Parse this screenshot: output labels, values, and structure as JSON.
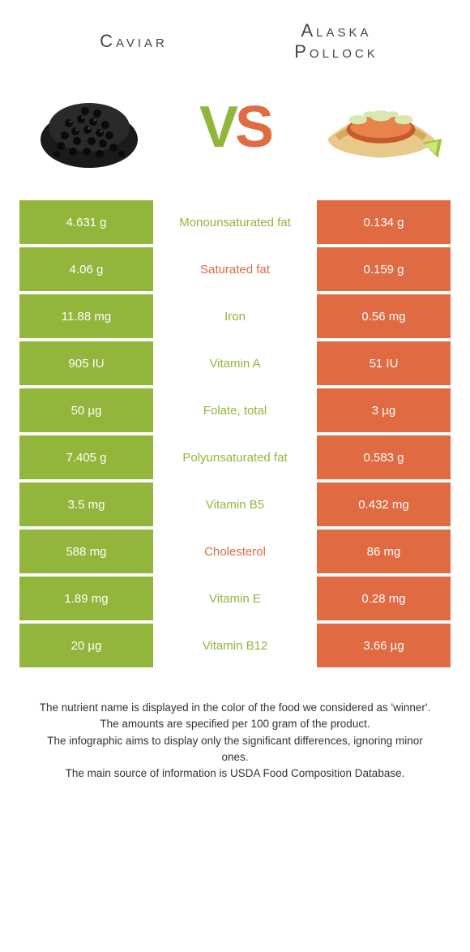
{
  "titles": {
    "left": "Caviar",
    "right_line1": "Alaska",
    "right_line2": "Pollock"
  },
  "colors": {
    "left": "#92b53b",
    "right": "#e06a42",
    "mid_bg": "#ffffff"
  },
  "vs": {
    "v": "V",
    "s": "S"
  },
  "rows": [
    {
      "left": "4.631 g",
      "mid": "Monounsaturated fat",
      "right": "0.134 g",
      "mid_color": "left"
    },
    {
      "left": "4.06 g",
      "mid": "Saturated fat",
      "right": "0.159 g",
      "mid_color": "right"
    },
    {
      "left": "11.88 mg",
      "mid": "Iron",
      "right": "0.56 mg",
      "mid_color": "left"
    },
    {
      "left": "905 IU",
      "mid": "Vitamin A",
      "right": "51 IU",
      "mid_color": "left"
    },
    {
      "left": "50 µg",
      "mid": "Folate, total",
      "right": "3 µg",
      "mid_color": "left"
    },
    {
      "left": "7.405 g",
      "mid": "Polyunsaturated fat",
      "right": "0.583 g",
      "mid_color": "left"
    },
    {
      "left": "3.5 mg",
      "mid": "Vitamin B5",
      "right": "0.432 mg",
      "mid_color": "left"
    },
    {
      "left": "588 mg",
      "mid": "Cholesterol",
      "right": "86 mg",
      "mid_color": "right"
    },
    {
      "left": "1.89 mg",
      "mid": "Vitamin E",
      "right": "0.28 mg",
      "mid_color": "left"
    },
    {
      "left": "20 µg",
      "mid": "Vitamin B12",
      "right": "3.66 µg",
      "mid_color": "left"
    }
  ],
  "footer": {
    "line1": "The nutrient name is displayed in the color of the food we considered as 'winner'.",
    "line2": "The amounts are specified per 100 gram of the product.",
    "line3": "The infographic aims to display only the significant differences, ignoring minor ones.",
    "line4": "The main source of information is USDA Food Composition Database."
  }
}
